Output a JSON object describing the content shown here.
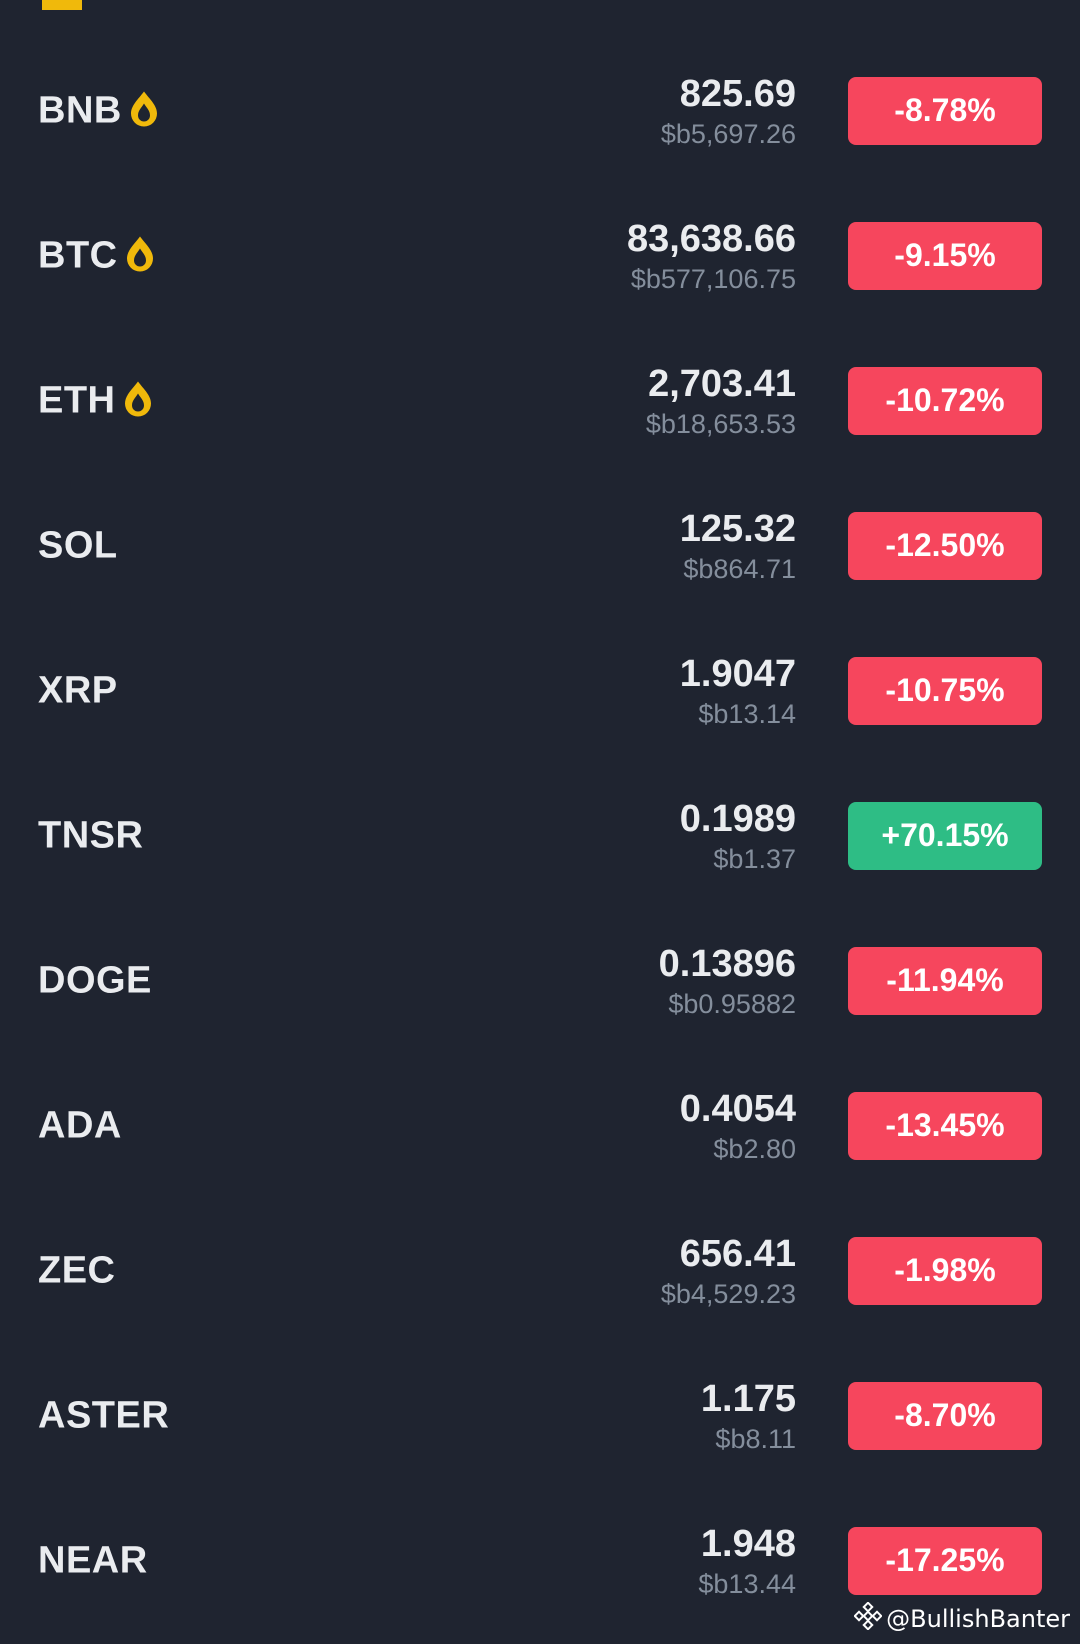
{
  "colors": {
    "background": "#1f2430",
    "accent": "#f0b90b",
    "down": "#f6465d",
    "up": "#2ebd85",
    "text_primary": "#eaecef",
    "text_secondary": "#848e9c"
  },
  "rows": [
    {
      "symbol": "BNB",
      "icon": "fire-icon",
      "price": "825.69",
      "fiat": "$b5,697.26",
      "change": "-8.78%",
      "direction": "down"
    },
    {
      "symbol": "BTC",
      "icon": "fire-icon",
      "price": "83,638.66",
      "fiat": "$b577,106.75",
      "change": "-9.15%",
      "direction": "down"
    },
    {
      "symbol": "ETH",
      "icon": "fire-icon",
      "price": "2,703.41",
      "fiat": "$b18,653.53",
      "change": "-10.72%",
      "direction": "down"
    },
    {
      "symbol": "SOL",
      "price": "125.32",
      "fiat": "$b864.71",
      "change": "-12.50%",
      "direction": "down"
    },
    {
      "symbol": "XRP",
      "price": "1.9047",
      "fiat": "$b13.14",
      "change": "-10.75%",
      "direction": "down"
    },
    {
      "symbol": "TNSR",
      "price": "0.1989",
      "fiat": "$b1.37",
      "change": "+70.15%",
      "direction": "up"
    },
    {
      "symbol": "DOGE",
      "price": "0.13896",
      "fiat": "$b0.95882",
      "change": "-11.94%",
      "direction": "down"
    },
    {
      "symbol": "ADA",
      "price": "0.4054",
      "fiat": "$b2.80",
      "change": "-13.45%",
      "direction": "down"
    },
    {
      "symbol": "ZEC",
      "price": "656.41",
      "fiat": "$b4,529.23",
      "change": "-1.98%",
      "direction": "down"
    },
    {
      "symbol": "ASTER",
      "price": "1.175",
      "fiat": "$b8.11",
      "change": "-8.70%",
      "direction": "down"
    },
    {
      "symbol": "NEAR",
      "price": "1.948",
      "fiat": "$b13.44",
      "change": "-17.25%",
      "direction": "down"
    }
  ],
  "watermark": {
    "text": "@BullishBanter",
    "icon": "binance-logo-icon"
  }
}
